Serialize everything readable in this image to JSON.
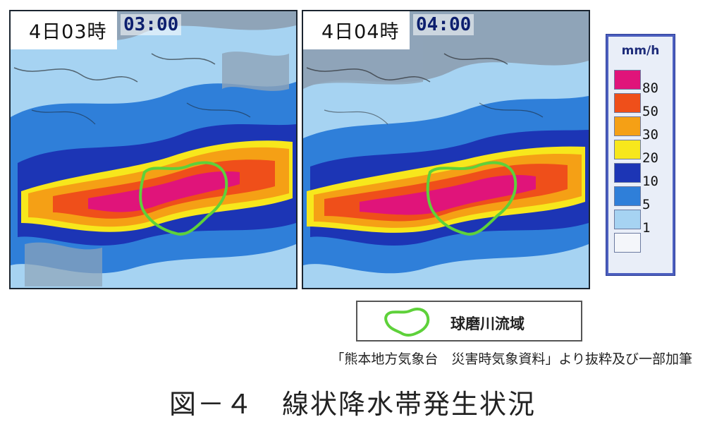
{
  "panels": [
    {
      "label": "4日03時",
      "time": "03:00"
    },
    {
      "label": "4日04時",
      "time": "04:00"
    }
  ],
  "legend": {
    "unit": "mm/h",
    "items": [
      {
        "label": "80",
        "color": "#e0147a"
      },
      {
        "label": "50",
        "color": "#ef4f1a"
      },
      {
        "label": "30",
        "color": "#f5a015"
      },
      {
        "label": "20",
        "color": "#f7e71c"
      },
      {
        "label": "10",
        "color": "#1c35b5"
      },
      {
        "label": "5",
        "color": "#2f7fd9"
      },
      {
        "label": "1",
        "color": "#a6d3f2"
      },
      {
        "label": "",
        "color": "#f4f6fa"
      }
    ]
  },
  "basin_key": {
    "label": "球磨川流域",
    "outline_color": "#5ed13a"
  },
  "source": "「熊本地方気象台　災害時気象資料」より抜粋及び一部加筆",
  "caption": "図－４　線状降水帯発生状況"
}
